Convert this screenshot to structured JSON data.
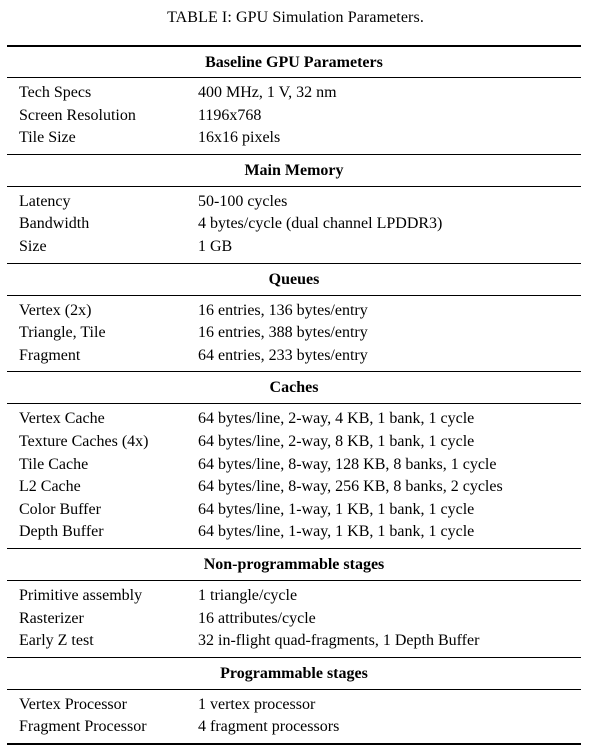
{
  "caption": "TABLE I: GPU Simulation Parameters.",
  "sections": [
    {
      "title": "Baseline GPU Parameters",
      "rows": [
        {
          "label": "Tech Specs",
          "value": "400 MHz, 1 V, 32 nm"
        },
        {
          "label": "Screen Resolution",
          "value": "1196x768"
        },
        {
          "label": "Tile Size",
          "value": "16x16 pixels"
        }
      ]
    },
    {
      "title": "Main Memory",
      "rows": [
        {
          "label": "Latency",
          "value": "50-100 cycles"
        },
        {
          "label": "Bandwidth",
          "value": "4 bytes/cycle (dual channel LPDDR3)"
        },
        {
          "label": "Size",
          "value": "1 GB"
        }
      ]
    },
    {
      "title": "Queues",
      "rows": [
        {
          "label": "Vertex (2x)",
          "value": "16 entries, 136 bytes/entry"
        },
        {
          "label": "Triangle, Tile",
          "value": "16 entries, 388 bytes/entry"
        },
        {
          "label": "Fragment",
          "value": "64 entries, 233 bytes/entry"
        }
      ]
    },
    {
      "title": "Caches",
      "rows": [
        {
          "label": "Vertex Cache",
          "value": "64 bytes/line, 2-way, 4 KB, 1 bank, 1 cycle"
        },
        {
          "label": "Texture Caches (4x)",
          "value": "64 bytes/line, 2-way, 8 KB, 1 bank, 1 cycle"
        },
        {
          "label": "Tile Cache",
          "value": "64 bytes/line, 8-way, 128 KB, 8 banks, 1 cycle"
        },
        {
          "label": "L2 Cache",
          "value": "64 bytes/line, 8-way, 256 KB, 8 banks, 2 cycles"
        },
        {
          "label": "Color Buffer",
          "value": "64 bytes/line, 1-way, 1 KB, 1 bank, 1 cycle"
        },
        {
          "label": "Depth Buffer",
          "value": "64 bytes/line, 1-way, 1 KB, 1 bank, 1 cycle"
        }
      ]
    },
    {
      "title": "Non-programmable stages",
      "rows": [
        {
          "label": "Primitive assembly",
          "value": "1 triangle/cycle"
        },
        {
          "label": "Rasterizer",
          "value": "16 attributes/cycle"
        },
        {
          "label": "Early Z test",
          "value": "32 in-flight quad-fragments, 1 Depth Buffer"
        }
      ]
    },
    {
      "title": "Programmable stages",
      "rows": [
        {
          "label": "Vertex Processor",
          "value": "1 vertex processor"
        },
        {
          "label": "Fragment Processor",
          "value": "4 fragment processors"
        }
      ]
    }
  ]
}
